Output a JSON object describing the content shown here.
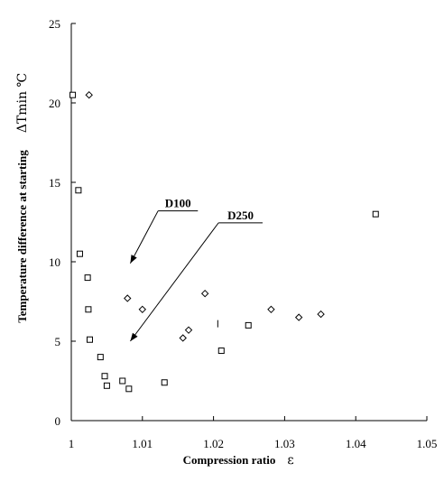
{
  "chart_data": {
    "type": "scatter",
    "xlabel": "Compression ratio",
    "xlabel_symbol": "ε",
    "ylabel": "Temperature difference at starting",
    "ylabel_symbol": "ΔTmin ℃",
    "xlim": [
      1.0,
      1.05
    ],
    "ylim": [
      0,
      25
    ],
    "xticks": [
      "1",
      "1.01",
      "1.02",
      "1.03",
      "1.04",
      "1.05"
    ],
    "yticks": [
      "0",
      "5",
      "10",
      "15",
      "20",
      "25"
    ],
    "grid": false,
    "series": [
      {
        "name": "D100",
        "marker": "square",
        "points": [
          [
            1.0002,
            20.5
          ],
          [
            1.001,
            14.5
          ],
          [
            1.0012,
            10.5
          ],
          [
            1.0023,
            9.0
          ],
          [
            1.0024,
            7.0
          ],
          [
            1.0026,
            5.1
          ],
          [
            1.0041,
            4.0
          ],
          [
            1.0047,
            2.8
          ],
          [
            1.005,
            2.2
          ],
          [
            1.0072,
            2.5
          ],
          [
            1.0081,
            2.0
          ],
          [
            1.0131,
            2.4
          ],
          [
            1.0211,
            4.4
          ],
          [
            1.0249,
            6.0
          ],
          [
            1.0428,
            13.0
          ]
        ]
      },
      {
        "name": "D250",
        "marker": "diamond",
        "points": [
          [
            1.0025,
            20.5
          ],
          [
            1.0079,
            7.7
          ],
          [
            1.01,
            7.0
          ],
          [
            1.0157,
            5.2
          ],
          [
            1.0165,
            5.7
          ],
          [
            1.0188,
            8.0
          ],
          [
            1.0281,
            7.0
          ],
          [
            1.032,
            6.5
          ],
          [
            1.0351,
            6.7
          ]
        ]
      }
    ],
    "stray_mark": [
      1.0206,
      6.1
    ],
    "annotations": [
      {
        "label": "D100",
        "series": "D100",
        "leader": [
          [
            1.0178,
            13.2
          ],
          [
            1.0122,
            13.2
          ]
        ],
        "arrow": [
          [
            1.0122,
            13.2
          ],
          [
            1.0083,
            9.9
          ]
        ]
      },
      {
        "label": "D250",
        "series": "D250",
        "leader": [
          [
            1.0269,
            12.45
          ],
          [
            1.0207,
            12.45
          ]
        ],
        "arrow": [
          [
            1.0207,
            12.45
          ],
          [
            1.0083,
            5.0
          ]
        ]
      }
    ]
  }
}
